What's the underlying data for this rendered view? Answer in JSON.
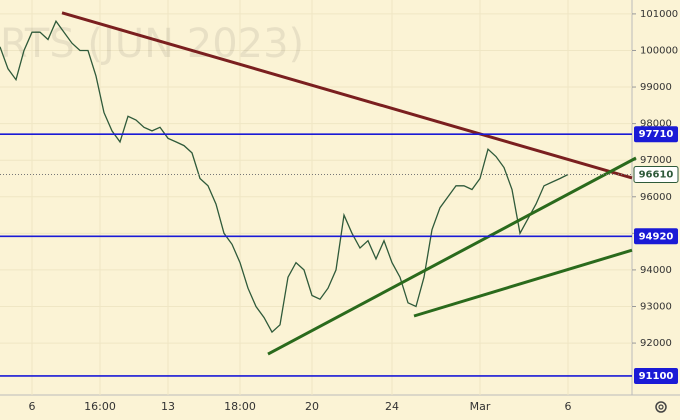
{
  "chart_data": {
    "type": "line",
    "watermark": "RTS (JUN 2023)",
    "xlim": [
      0,
      79
    ],
    "xticks": [
      {
        "value": 4,
        "label": "6"
      },
      {
        "value": 12.5,
        "label": "16:00"
      },
      {
        "value": 21,
        "label": "13"
      },
      {
        "value": 30,
        "label": "18:00"
      },
      {
        "value": 39,
        "label": "20"
      },
      {
        "value": 49,
        "label": "24"
      },
      {
        "value": 60,
        "label": "Mar"
      },
      {
        "value": 71,
        "label": "6"
      }
    ],
    "ylim": [
      90580,
      101380
    ],
    "yticks": [
      92000,
      93000,
      94000,
      95000,
      96000,
      97000,
      98000,
      99000,
      100000,
      101000
    ],
    "grid": true,
    "series": [
      {
        "color": "#2f5a3a",
        "values": [
          100100,
          99500,
          99200,
          100000,
          100500,
          100500,
          100300,
          100800,
          100500,
          100200,
          100000,
          100000,
          99300,
          98300,
          97800,
          97500,
          98200,
          98100,
          97900,
          97800,
          97900,
          97600,
          97500,
          97400,
          97200,
          96500,
          96300,
          95800,
          95000,
          94700,
          94200,
          93500,
          93000,
          92700,
          92300,
          92500,
          93800,
          94200,
          94000,
          93300,
          93200,
          93500,
          94000,
          95500,
          95000,
          94600,
          94800,
          94300,
          94800,
          94200,
          93800,
          93100,
          93000,
          93800,
          95100,
          95700,
          96000,
          96300,
          96300,
          96200,
          96500,
          97300,
          97100,
          96800,
          96200,
          95000,
          95400,
          95800,
          96300,
          96400,
          96500,
          96610
        ]
      }
    ],
    "hlines": [
      97710,
      94920,
      91100
    ],
    "hline_color": "#1a1ad6",
    "trendlines": [
      {
        "color": "#7a1f1f",
        "x": [
          7.75,
          79
        ],
        "y": [
          101030,
          96514
        ]
      },
      {
        "color": "#2a6a1c",
        "x": [
          33.5,
          79.5
        ],
        "y": [
          91700,
          97060
        ]
      },
      {
        "color": "#2a6a1c",
        "x": [
          51.75,
          79
        ],
        "y": [
          92740,
          94540
        ]
      }
    ]
  }
}
